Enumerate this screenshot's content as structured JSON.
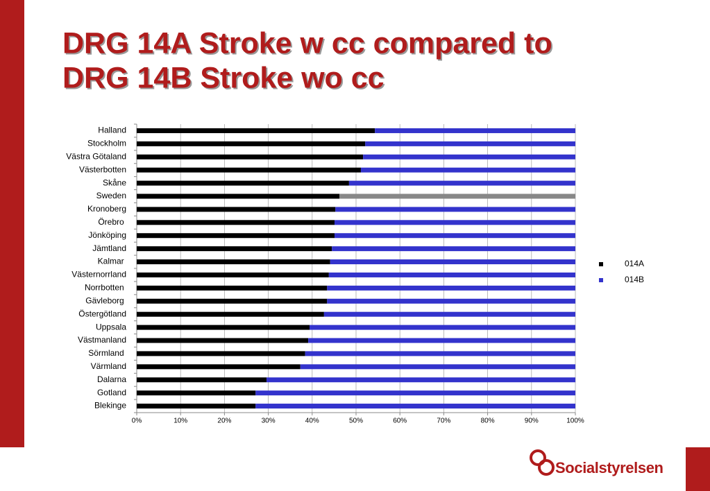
{
  "title_lines": [
    "DRG 14A Stroke w cc compared to",
    "DRG 14B Stroke wo cc"
  ],
  "logo": "Socialstyrelsen",
  "chart_data": {
    "type": "stacked-bar-100",
    "categories": [
      "Halland",
      "Stockholm",
      "Västra Götaland",
      "Västerbotten",
      "Skåne",
      "Sweden",
      "Kronoberg",
      "Örebro ",
      "Jönköping",
      "Jämtland",
      "Kalmar ",
      "Västernorrland",
      "Norrbotten ",
      "Gävleborg ",
      "Östergötland",
      "Uppsala",
      "Västmanland",
      "Sörmland ",
      "Värmland",
      "Dalarna",
      "Gotland",
      "Blekinge"
    ],
    "series": [
      {
        "name": "014A",
        "color": "#000000",
        "values": [
          54.3,
          52.1,
          51.6,
          51.1,
          48.4,
          46.2,
          45.3,
          45.1,
          45.1,
          44.5,
          44.1,
          43.8,
          43.4,
          43.4,
          42.7,
          39.4,
          39.1,
          38.4,
          37.3,
          29.6,
          27.1,
          27.1
        ]
      },
      {
        "name": "014B",
        "color": "#3333cc",
        "values": [
          45.7,
          47.9,
          48.4,
          48.9,
          51.6,
          53.8,
          54.7,
          54.9,
          54.9,
          55.5,
          55.9,
          56.2,
          56.6,
          56.6,
          57.3,
          60.6,
          60.9,
          61.6,
          62.7,
          70.4,
          72.9,
          72.9
        ],
        "point_colors": [
          "#3333cc",
          "#3333cc",
          "#3333cc",
          "#3333cc",
          "#3333cc",
          "#888888",
          "#3333cc",
          "#3333cc",
          "#3333cc",
          "#3333cc",
          "#3333cc",
          "#3333cc",
          "#3333cc",
          "#3333cc",
          "#3333cc",
          "#3333cc",
          "#3333cc",
          "#3333cc",
          "#3333cc",
          "#3333cc",
          "#3333cc",
          "#3333cc"
        ]
      }
    ],
    "xlim": [
      0,
      100
    ],
    "xticks": [
      {
        "value": 0,
        "label": "0%"
      },
      {
        "value": 10,
        "label": "10%"
      },
      {
        "value": 20,
        "label": "20%"
      },
      {
        "value": 30,
        "label": "30%"
      },
      {
        "value": 40,
        "label": "40%"
      },
      {
        "value": 50,
        "label": "50%"
      },
      {
        "value": 60,
        "label": "60%"
      },
      {
        "value": 70,
        "label": "70%"
      },
      {
        "value": 80,
        "label": "80%"
      },
      {
        "value": 90,
        "label": "90%"
      },
      {
        "value": 100,
        "label": "100%"
      }
    ],
    "grid": true,
    "legend": "right"
  }
}
